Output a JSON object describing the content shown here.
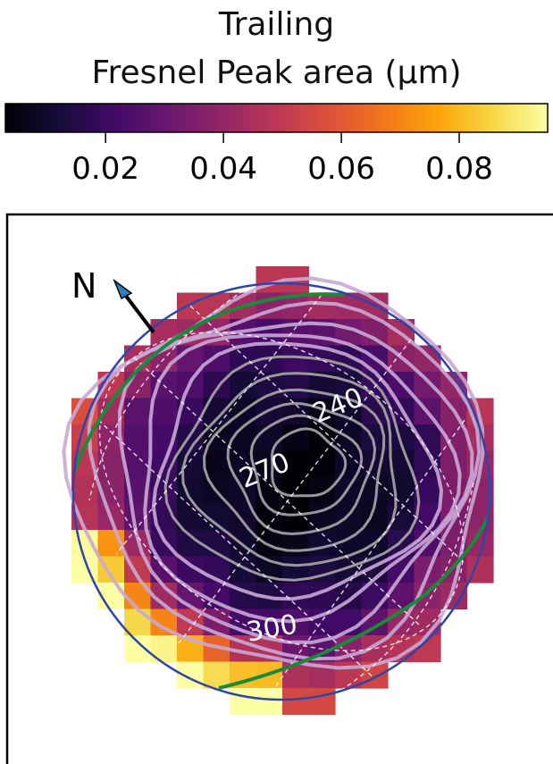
{
  "chart_data": {
    "type": "heatmap",
    "title_line1": "Trailing",
    "title_line2": "Fresnel Peak area  (μm)",
    "colormap": "inferno",
    "colorbar": {
      "range": [
        0.003,
        0.095
      ],
      "ticks": [
        0.02,
        0.04,
        0.06,
        0.08
      ],
      "tick_labels": [
        "0.02",
        "0.04",
        "0.06",
        "0.08"
      ]
    },
    "disk_outline_color": "#2e45a8",
    "terminator_color": "#1a8a3a",
    "contour_color": "#a8a8a8",
    "grid_color": "#ffffff",
    "north_label": "N",
    "longitude_labels": [
      "240",
      "270",
      "300"
    ],
    "notes": "Map of a planetary/satellite disk; darkest values at disk center, increasing toward limb, brightest at lower-left limb."
  }
}
